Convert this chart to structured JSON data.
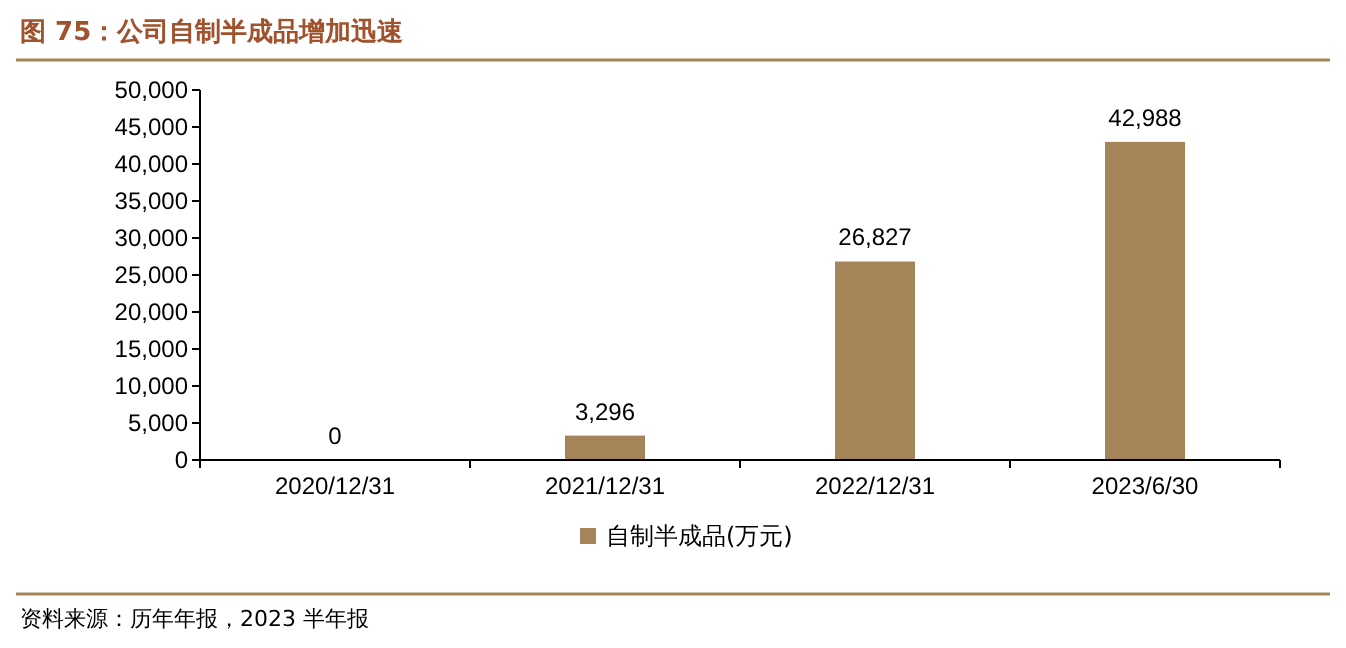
{
  "chart_data": {
    "type": "bar",
    "title": "图 75：公司自制半成品增加迅速",
    "categories": [
      "2020/12/31",
      "2021/12/31",
      "2022/12/31",
      "2023/6/30"
    ],
    "series": [
      {
        "name": "自制半成品(万元)",
        "color": "#a5845a",
        "values": [
          0,
          3296,
          26827,
          42988
        ],
        "value_labels": [
          "0",
          "3,296",
          "26,827",
          "42,988"
        ]
      }
    ],
    "ylim": [
      0,
      50000
    ],
    "yticks": [
      0,
      {
        "value": 5000,
        "label": "5,000"
      },
      {
        "value": 10000,
        "label": "10,000"
      },
      {
        "value": 15000,
        "label": "15,000"
      },
      {
        "value": 20000,
        "label": "20,000"
      },
      {
        "value": 25000,
        "label": "25,000"
      },
      {
        "value": 30000,
        "label": "30,000"
      },
      {
        "value": 35000,
        "label": "35,000"
      },
      {
        "value": 40000,
        "label": "40,000"
      },
      {
        "value": 45000,
        "label": "45,000"
      },
      {
        "value": 50000,
        "label": "50,000"
      }
    ],
    "legend": "bottom",
    "grid": false,
    "annotations": [
      "资料来源：历年年报，2023 半年报"
    ]
  }
}
